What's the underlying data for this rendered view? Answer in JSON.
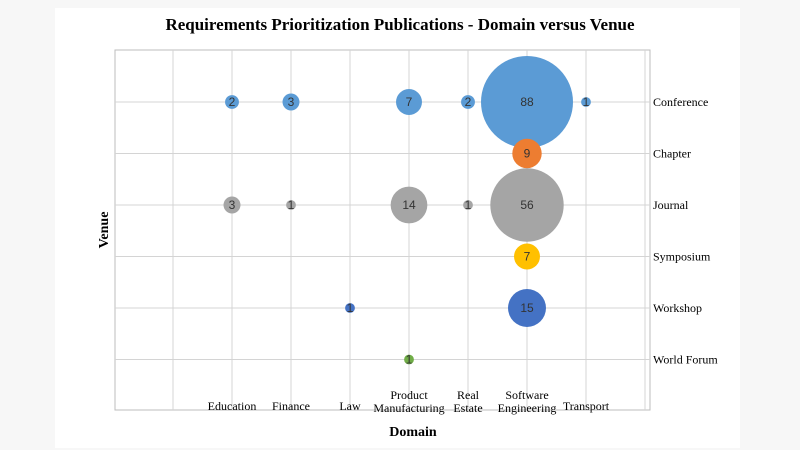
{
  "chart_data": {
    "type": "bubble",
    "title": "Requirements Prioritization Publications - Domain versus Venue",
    "xlabel": "Domain",
    "ylabel": "Venue",
    "categories_x": [
      [
        "Education"
      ],
      [
        "Finance"
      ],
      [
        "Law"
      ],
      [
        "Product",
        "Manufacturing"
      ],
      [
        "Real",
        "Estate"
      ],
      [
        "Software",
        "Engineering"
      ],
      [
        "Transport"
      ]
    ],
    "categories_y": [
      "Conference",
      "Chapter",
      "Journal",
      "Symposium",
      "Workshop",
      "World Forum"
    ],
    "grid": true,
    "colors": {
      "Conference": "#5b9bd5",
      "Chapter": "#ed7d31",
      "Journal": "#a5a5a5",
      "Symposium": "#ffc000",
      "Workshop": "#4472c4",
      "World Forum": "#70ad47"
    },
    "points": [
      {
        "domain": 0,
        "venue": "Conference",
        "value": 2
      },
      {
        "domain": 1,
        "venue": "Conference",
        "value": 3
      },
      {
        "domain": 3,
        "venue": "Conference",
        "value": 7
      },
      {
        "domain": 4,
        "venue": "Conference",
        "value": 2
      },
      {
        "domain": 5,
        "venue": "Conference",
        "value": 88
      },
      {
        "domain": 6,
        "venue": "Conference",
        "value": 1
      },
      {
        "domain": 5,
        "venue": "Chapter",
        "value": 9
      },
      {
        "domain": 0,
        "venue": "Journal",
        "value": 3
      },
      {
        "domain": 1,
        "venue": "Journal",
        "value": 1
      },
      {
        "domain": 3,
        "venue": "Journal",
        "value": 14
      },
      {
        "domain": 4,
        "venue": "Journal",
        "value": 1
      },
      {
        "domain": 5,
        "venue": "Journal",
        "value": 56
      },
      {
        "domain": 5,
        "venue": "Symposium",
        "value": 7
      },
      {
        "domain": 2,
        "venue": "Workshop",
        "value": 1
      },
      {
        "domain": 5,
        "venue": "Workshop",
        "value": 15
      },
      {
        "domain": 3,
        "venue": "World Forum",
        "value": 1
      }
    ]
  }
}
